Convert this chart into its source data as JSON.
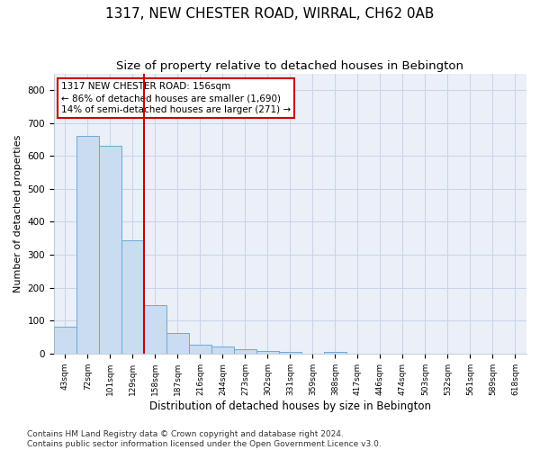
{
  "title": "1317, NEW CHESTER ROAD, WIRRAL, CH62 0AB",
  "subtitle": "Size of property relative to detached houses in Bebington",
  "xlabel": "Distribution of detached houses by size in Bebington",
  "ylabel": "Number of detached properties",
  "categories": [
    "43sqm",
    "72sqm",
    "101sqm",
    "129sqm",
    "158sqm",
    "187sqm",
    "216sqm",
    "244sqm",
    "273sqm",
    "302sqm",
    "331sqm",
    "359sqm",
    "388sqm",
    "417sqm",
    "446sqm",
    "474sqm",
    "503sqm",
    "532sqm",
    "561sqm",
    "589sqm",
    "618sqm"
  ],
  "values": [
    82,
    660,
    630,
    345,
    148,
    62,
    27,
    22,
    12,
    8,
    5,
    0,
    6,
    0,
    0,
    0,
    0,
    0,
    0,
    0,
    0
  ],
  "bar_color": "#c9dcf0",
  "bar_edge_color": "#6aaad8",
  "vline_pos": 3.5,
  "vline_color": "#cc0000",
  "annotation_line1": "1317 NEW CHESTER ROAD: 156sqm",
  "annotation_line2": "← 86% of detached houses are smaller (1,690)",
  "annotation_line3": "14% of semi-detached houses are larger (271) →",
  "annotation_box_color": "#cc0000",
  "ylim": [
    0,
    850
  ],
  "yticks": [
    0,
    100,
    200,
    300,
    400,
    500,
    600,
    700,
    800
  ],
  "grid_color": "#c8d4e8",
  "bg_color": "#eaeff8",
  "footer": "Contains HM Land Registry data © Crown copyright and database right 2024.\nContains public sector information licensed under the Open Government Licence v3.0.",
  "title_fontsize": 11,
  "subtitle_fontsize": 9.5,
  "xlabel_fontsize": 8.5,
  "ylabel_fontsize": 8,
  "annotation_fontsize": 7.5,
  "footer_fontsize": 6.5
}
